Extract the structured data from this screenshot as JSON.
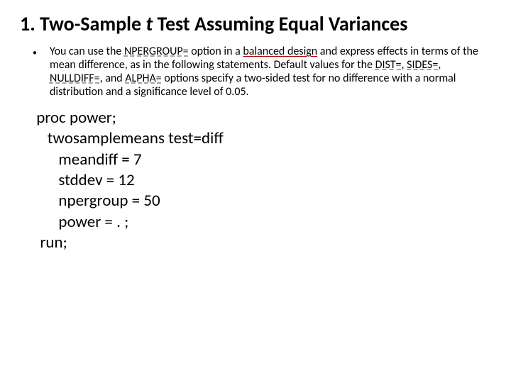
{
  "title": {
    "prefix": "1. Two-Sample ",
    "italic": "t",
    "suffix": " Test Assuming Equal Variances",
    "fontsize": 28,
    "weight": 700,
    "color": "#000000"
  },
  "bullet": {
    "marker": "•",
    "text_parts": {
      "p1": "You can use the ",
      "link1": "NPERGROUP=",
      "p2": " option in a ",
      "redlink": "balanced design",
      "p3": " and express effects in terms of the mean difference, as in the following statements. Default values for the ",
      "link2": "DIST=",
      "p4": ", ",
      "link3": "SIDES=",
      "p5": ", ",
      "link4": "NULLDIFF=",
      "p6": ", and ",
      "link5": "ALPHA=",
      "p7": " options specify a two-sided test for no difference with a normal distribution and a significance level of 0.05."
    },
    "fontsize": 16,
    "link_underline_color": "#888888",
    "redlink_underline_color": "#b00000"
  },
  "code": {
    "fontsize": 23,
    "lines": {
      "l0": " proc power;",
      "l1": "    twosamplemeans test=diff",
      "l2": "       meandiff = 7",
      "l3": "       stddev = 12",
      "l4": "       npergroup = 50",
      "l5": "       power = . ;",
      "l6": "  run;"
    }
  },
  "colors": {
    "background": "#ffffff",
    "text": "#000000"
  }
}
